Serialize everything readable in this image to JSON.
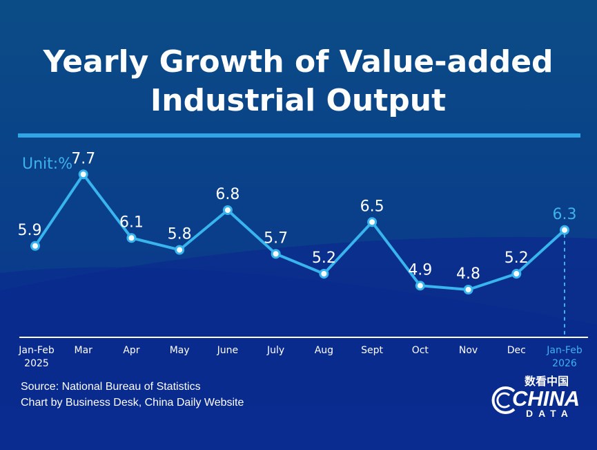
{
  "title_lines": [
    "Yearly Growth of Value-added",
    "Industrial Output"
  ],
  "unit_label": "Unit:%",
  "source": "Source: National Bureau of Statistics",
  "credit": "Chart by Business Desk, China Daily Website",
  "logo": {
    "cn": "数看中国",
    "main": "CHINA",
    "sub": "DATA"
  },
  "colors": {
    "background_top": "#0b4c86",
    "background_bottom": "#0a2f9a",
    "line": "#38b4ee",
    "text": "#ffffff",
    "highlight": "#3fb2ee"
  },
  "chart_data": {
    "type": "line",
    "title": "Yearly Growth of Value-added Industrial Output",
    "ylabel": "Unit:%",
    "xlabel": "",
    "categories": [
      [
        "Jan-Feb",
        "2025"
      ],
      [
        "Mar"
      ],
      [
        "Apr"
      ],
      [
        "May"
      ],
      [
        "June"
      ],
      [
        "July"
      ],
      [
        "Aug"
      ],
      [
        "Sept"
      ],
      [
        "Oct"
      ],
      [
        "Nov"
      ],
      [
        "Dec"
      ],
      [
        "Jan-Feb",
        "2026"
      ]
    ],
    "values": [
      5.9,
      7.7,
      6.1,
      5.8,
      6.8,
      5.7,
      5.2,
      6.5,
      4.9,
      4.8,
      5.2,
      6.3
    ],
    "value_labels": [
      "5.9",
      "7.7",
      "6.1",
      "5.8",
      "6.8",
      "5.7",
      "5.2",
      "6.5",
      "4.9",
      "4.8",
      "5.2",
      "6.3"
    ],
    "highlight_index": 11,
    "ylim": [
      3.6,
      8.0
    ],
    "grid": false,
    "legend": "none"
  }
}
